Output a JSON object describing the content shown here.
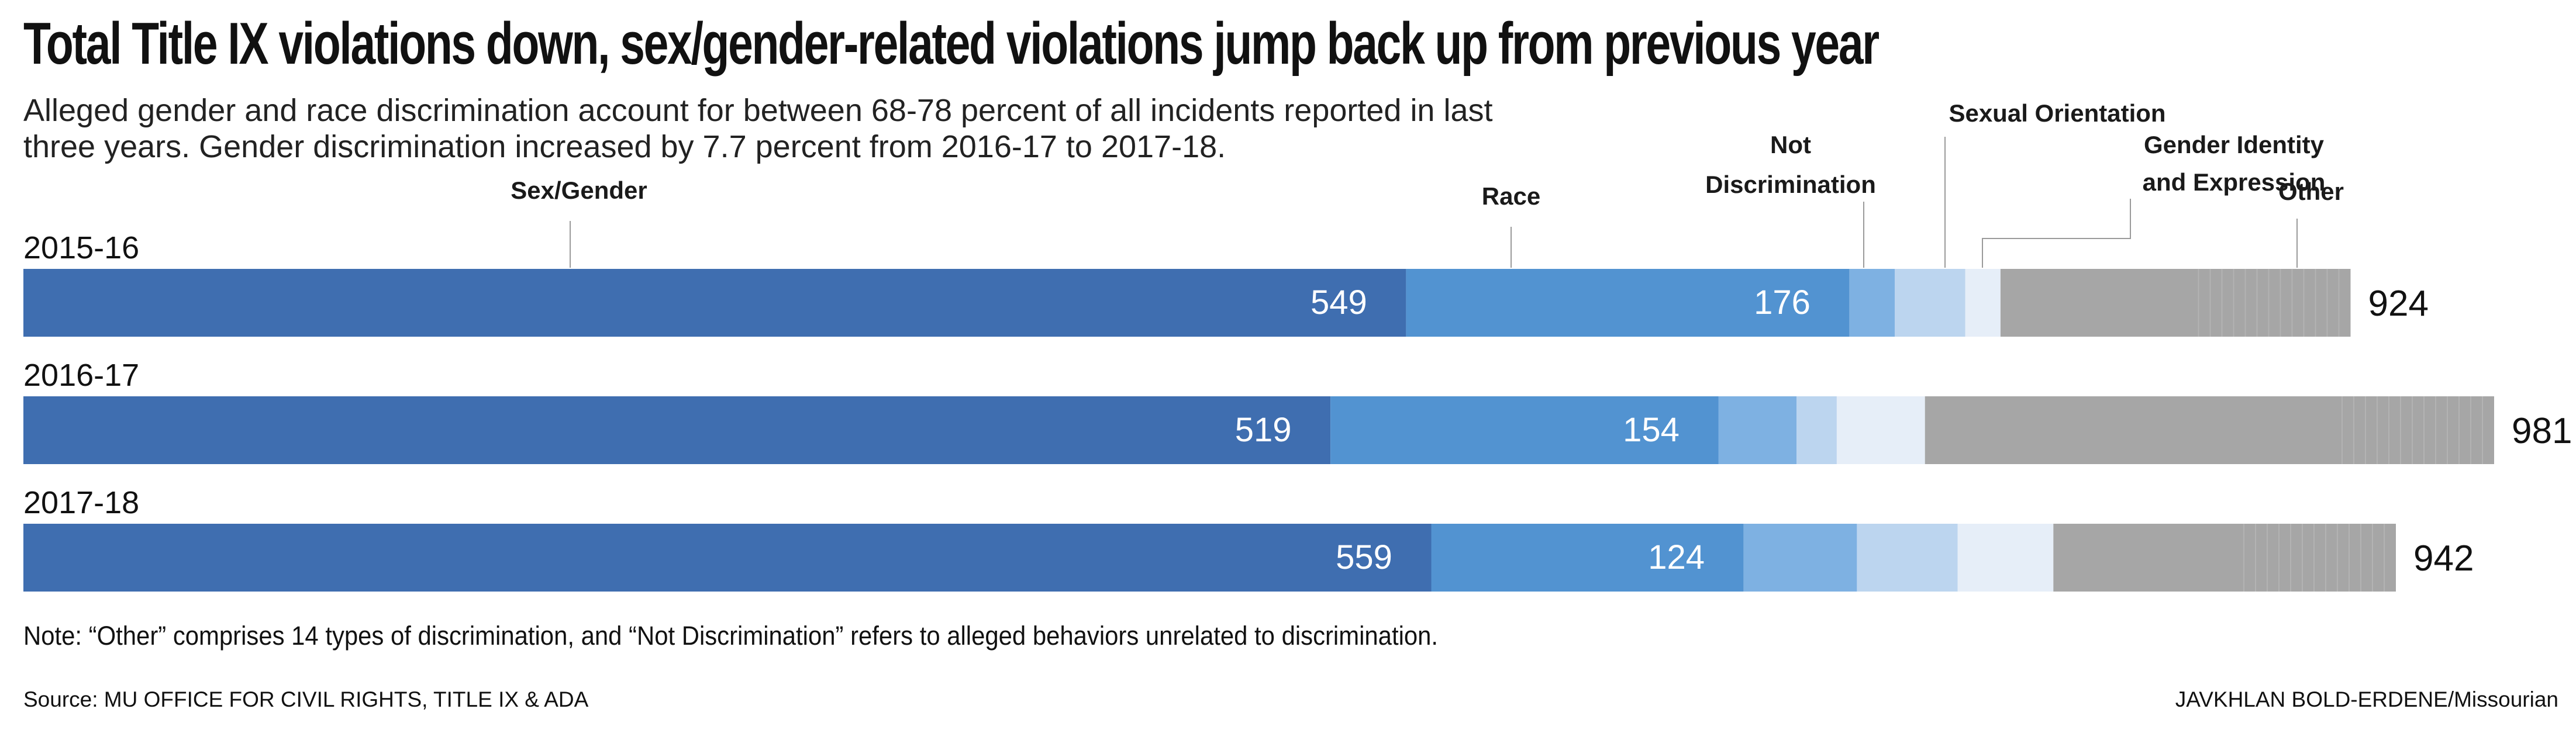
{
  "title": "Total Title IX violations down, sex/gender-related violations jump back up from previous year",
  "subtitle": "Alleged gender and race discrimination account for between 68-78 percent of all incidents reported in last three years. Gender discrimination increased by 7.7 percent from 2016-17 to 2017-18.",
  "note": "Note: “Other” comprises 14 types of discrimination, and “Not Discrimination” refers to alleged behaviors unrelated to discrimination.",
  "source": "Source: MU OFFICE FOR CIVIL RIGHTS, TITLE IX & ADA",
  "credit": "JAVKHLAN BOLD-ERDENE/Missourian",
  "chart_data": {
    "type": "bar",
    "orientation": "horizontal",
    "stacked": true,
    "categories": [
      "2015-16",
      "2016-17",
      "2017-18"
    ],
    "totals": [
      924,
      981,
      942
    ],
    "series": [
      {
        "name": "Sex/Gender",
        "values": [
          549,
          519,
          559
        ],
        "color": "#3f6eb0",
        "show_label": true
      },
      {
        "name": "Race",
        "values": [
          176,
          154,
          124
        ],
        "color": "#5293d1",
        "show_label": true
      },
      {
        "name": "Not Discrimination",
        "values": [
          18,
          31,
          45
        ],
        "color": "#7eb1e2",
        "show_label": false
      },
      {
        "name": "Sexual Orientation",
        "values": [
          28,
          16,
          40
        ],
        "color": "#bcd5ef",
        "show_label": false
      },
      {
        "name": "Gender Identity and Expression",
        "values": [
          14,
          35,
          38
        ],
        "color": "#e6eef8",
        "show_label": false
      },
      {
        "name": "Other",
        "values": [
          139,
          226,
          136
        ],
        "color": "#a6a6a6",
        "show_label": false
      }
    ],
    "legend_labels": [
      {
        "series": "Sex/Gender",
        "lines": [
          "Sex/Gender"
        ]
      },
      {
        "series": "Race",
        "lines": [
          "Race"
        ]
      },
      {
        "series": "Not Discrimination",
        "lines": [
          "Not",
          "Discrimination"
        ]
      },
      {
        "series": "Sexual Orientation",
        "lines": [
          "Sexual Orientation"
        ]
      },
      {
        "series": "Gender Identity and Expression",
        "lines": [
          "Gender Identity",
          "and Expression"
        ]
      },
      {
        "series": "Other",
        "lines": [
          "Other"
        ]
      }
    ],
    "legend_placement": "top, labels with leader lines to the 2015-16 bar",
    "grid": false
  }
}
